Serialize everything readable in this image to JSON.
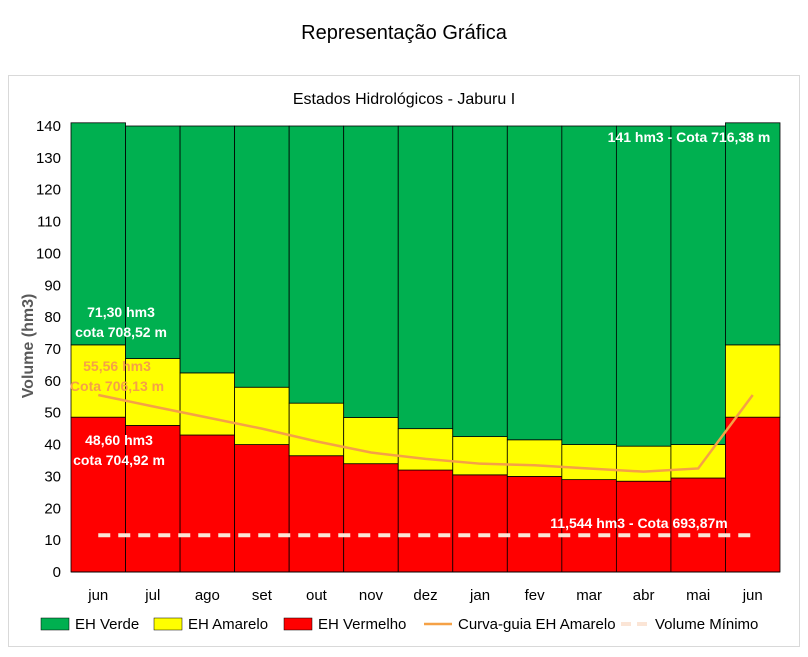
{
  "page_title": "Representação Gráfica",
  "chart_data": {
    "type": "bar",
    "stacked": true,
    "title": "Estados Hidrológicos - Jaburu I",
    "xlabel": "",
    "ylabel": "Volume (hm3)",
    "ylim": [
      0,
      140
    ],
    "yticks": [
      0,
      10,
      20,
      30,
      40,
      50,
      60,
      70,
      80,
      90,
      100,
      110,
      120,
      130,
      140
    ],
    "categories": [
      "jun",
      "jul",
      "ago",
      "set",
      "out",
      "nov",
      "dez",
      "jan",
      "fev",
      "mar",
      "abr",
      "mai",
      "jun"
    ],
    "series": [
      {
        "name": "EH Vermelho",
        "color": "#ff0000",
        "values": [
          48.6,
          46,
          43,
          40,
          36.5,
          34,
          32,
          30.5,
          30,
          29,
          28.5,
          29.5,
          48.6
        ]
      },
      {
        "name": "EH Amarelo",
        "color": "#ffff00",
        "values": [
          22.7,
          21,
          19.5,
          18,
          16.5,
          14.5,
          13,
          12,
          11.5,
          11,
          11,
          10.5,
          22.7
        ]
      },
      {
        "name": "EH Verde",
        "color": "#00b050",
        "values": [
          69.7,
          73,
          77.5,
          82,
          87,
          91.5,
          95,
          97.5,
          98.5,
          100,
          100.5,
          100,
          69.7
        ]
      }
    ],
    "lines": [
      {
        "name": "Curva-guia EH Amarelo",
        "color": "#f5a146",
        "style": "solid",
        "values": [
          55.56,
          52,
          48.5,
          45,
          41,
          37.5,
          35.5,
          34,
          33.5,
          32.5,
          31.5,
          32.5,
          55.56
        ]
      },
      {
        "name": "Volume Mínimo",
        "color": "#fbe5d6",
        "style": "dashed",
        "values": [
          11.544,
          11.544,
          11.544,
          11.544,
          11.544,
          11.544,
          11.544,
          11.544,
          11.544,
          11.544,
          11.544,
          11.544,
          11.544
        ]
      }
    ],
    "annotations": [
      {
        "id": "max",
        "lines": [
          "141 hm3 - Cota 716,38 m"
        ],
        "color": "#ffffff"
      },
      {
        "id": "yellow-top",
        "lines": [
          "71,30 hm3",
          "cota 708,52 m"
        ],
        "color": "#ffffff"
      },
      {
        "id": "guide",
        "lines": [
          "55,56 hm3",
          "Cota 706,13 m"
        ],
        "color": "#f5a146"
      },
      {
        "id": "red-top",
        "lines": [
          "48,60 hm3",
          "cota 704,92 m"
        ],
        "color": "#ffffff"
      },
      {
        "id": "min",
        "lines": [
          "11,544 hm3 - Cota 693,87m"
        ],
        "color": "#ffffff"
      }
    ],
    "legend": [
      "EH Verde",
      "EH Amarelo",
      "EH Vermelho",
      "Curva-guia EH Amarelo",
      "Volume Mínimo"
    ],
    "legend_position": "bottom",
    "grid": false
  }
}
